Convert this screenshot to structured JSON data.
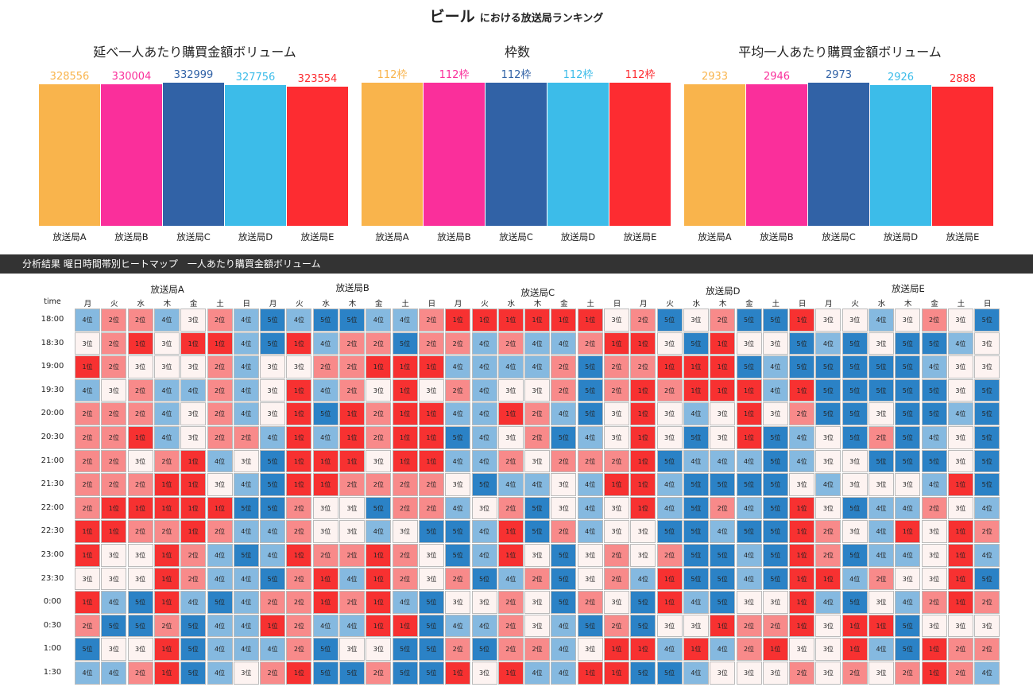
{
  "title": {
    "product": "ビール",
    "suffix": "における放送局ランキング"
  },
  "colors": {
    "stations": [
      "#f9b44c",
      "#fa2f9b",
      "#3162a6",
      "#3cbce9",
      "#fd2c31"
    ],
    "rank": [
      "#f73131",
      "#f88a8a",
      "#fdf3f1",
      "#85b9e0",
      "#2b82c6"
    ]
  },
  "chart_data": [
    {
      "type": "bar",
      "title": "延べ一人あたり購買金額ボリューム",
      "categories": [
        "放送局A",
        "放送局B",
        "放送局C",
        "放送局D",
        "放送局E"
      ],
      "values": [
        328556,
        330004,
        332999,
        327756,
        323554
      ],
      "labels": [
        "328556",
        "330004",
        "332999",
        "327756",
        "323554"
      ]
    },
    {
      "type": "bar",
      "title": "枠数",
      "categories": [
        "放送局A",
        "放送局B",
        "放送局C",
        "放送局D",
        "放送局E"
      ],
      "values": [
        112,
        112,
        112,
        112,
        112
      ],
      "labels": [
        "112枠",
        "112枠",
        "112枠",
        "112枠",
        "112枠"
      ]
    },
    {
      "type": "bar",
      "title": "平均一人あたり購買金額ボリューム",
      "categories": [
        "放送局A",
        "放送局B",
        "放送局C",
        "放送局D",
        "放送局E"
      ],
      "values": [
        2933,
        2946,
        2973,
        2926,
        2888
      ],
      "labels": [
        "2933",
        "2946",
        "2973",
        "2926",
        "2888"
      ]
    },
    {
      "type": "heatmap",
      "title": "分析結果 曜日時間帯別ヒートマップ　一人あたり購買金額ボリューム",
      "row_header": "time",
      "stations": [
        "放送局A",
        "放送局B",
        "放送局C",
        "放送局D",
        "放送局E"
      ],
      "days": [
        "月",
        "火",
        "水",
        "木",
        "金",
        "土",
        "日"
      ],
      "unit": "位",
      "times": [
        "18:00",
        "18:30",
        "19:00",
        "19:30",
        "20:00",
        "20:30",
        "21:00",
        "21:30",
        "22:00",
        "22:30",
        "23:00",
        "23:30",
        "0:00",
        "0:30",
        "1:00",
        "1:30"
      ],
      "values": [
        [
          4,
          2,
          2,
          4,
          3,
          2,
          4,
          5,
          4,
          5,
          5,
          4,
          4,
          2,
          1,
          1,
          1,
          1,
          1,
          1,
          3,
          2,
          5,
          3,
          2,
          5,
          5,
          1,
          3,
          3,
          4,
          3,
          2,
          3,
          5
        ],
        [
          3,
          2,
          1,
          3,
          1,
          1,
          4,
          5,
          1,
          4,
          2,
          2,
          5,
          2,
          2,
          4,
          2,
          4,
          4,
          2,
          1,
          1,
          3,
          5,
          1,
          3,
          3,
          5,
          4,
          5,
          3,
          5,
          5,
          4,
          3
        ],
        [
          1,
          2,
          3,
          3,
          3,
          2,
          4,
          3,
          3,
          2,
          2,
          1,
          1,
          1,
          4,
          4,
          4,
          4,
          2,
          5,
          2,
          2,
          1,
          1,
          1,
          5,
          4,
          5,
          5,
          5,
          5,
          5,
          4,
          3,
          3
        ],
        [
          4,
          3,
          2,
          4,
          4,
          2,
          4,
          3,
          1,
          4,
          2,
          3,
          1,
          3,
          2,
          4,
          3,
          3,
          2,
          5,
          2,
          1,
          2,
          1,
          1,
          1,
          4,
          1,
          5,
          5,
          5,
          5,
          5,
          3,
          5
        ],
        [
          2,
          2,
          2,
          4,
          3,
          2,
          4,
          3,
          1,
          5,
          1,
          2,
          1,
          1,
          4,
          4,
          1,
          2,
          4,
          5,
          3,
          1,
          3,
          4,
          3,
          1,
          3,
          2,
          5,
          5,
          3,
          5,
          5,
          4,
          5
        ],
        [
          2,
          2,
          1,
          4,
          3,
          2,
          2,
          4,
          1,
          4,
          1,
          2,
          1,
          1,
          5,
          4,
          3,
          2,
          5,
          4,
          3,
          1,
          3,
          5,
          3,
          1,
          5,
          4,
          3,
          5,
          2,
          5,
          4,
          3,
          5
        ],
        [
          2,
          2,
          3,
          2,
          1,
          4,
          3,
          5,
          1,
          1,
          1,
          3,
          1,
          1,
          4,
          4,
          2,
          3,
          2,
          2,
          2,
          1,
          5,
          4,
          4,
          4,
          5,
          4,
          3,
          3,
          5,
          5,
          5,
          3,
          5
        ],
        [
          2,
          2,
          2,
          1,
          1,
          3,
          4,
          5,
          1,
          1,
          2,
          2,
          2,
          2,
          3,
          5,
          4,
          4,
          3,
          4,
          1,
          1,
          4,
          5,
          5,
          5,
          5,
          3,
          4,
          3,
          3,
          3,
          4,
          1,
          5
        ],
        [
          2,
          1,
          1,
          1,
          1,
          1,
          5,
          5,
          2,
          3,
          3,
          5,
          2,
          2,
          4,
          3,
          2,
          5,
          3,
          4,
          3,
          1,
          4,
          5,
          2,
          4,
          5,
          1,
          3,
          5,
          4,
          4,
          2,
          3,
          4
        ],
        [
          1,
          1,
          2,
          2,
          1,
          2,
          4,
          4,
          2,
          3,
          3,
          4,
          3,
          5,
          5,
          4,
          1,
          5,
          2,
          4,
          3,
          3,
          5,
          5,
          4,
          5,
          5,
          1,
          2,
          3,
          4,
          1,
          3,
          1,
          2
        ],
        [
          1,
          3,
          3,
          1,
          2,
          4,
          5,
          4,
          1,
          2,
          2,
          1,
          2,
          3,
          5,
          4,
          1,
          3,
          5,
          3,
          2,
          3,
          2,
          5,
          5,
          4,
          5,
          1,
          2,
          5,
          4,
          4,
          3,
          1,
          4
        ],
        [
          3,
          3,
          3,
          1,
          2,
          4,
          4,
          5,
          2,
          1,
          4,
          1,
          2,
          3,
          2,
          5,
          4,
          2,
          5,
          3,
          2,
          4,
          1,
          5,
          5,
          4,
          5,
          1,
          1,
          4,
          2,
          3,
          3,
          1,
          5
        ],
        [
          1,
          4,
          5,
          1,
          4,
          5,
          4,
          2,
          2,
          1,
          2,
          1,
          4,
          5,
          3,
          3,
          2,
          3,
          5,
          2,
          3,
          5,
          1,
          4,
          5,
          3,
          3,
          1,
          4,
          5,
          3,
          4,
          2,
          1,
          2
        ],
        [
          2,
          5,
          5,
          2,
          5,
          4,
          4,
          1,
          2,
          4,
          4,
          1,
          1,
          5,
          4,
          4,
          2,
          3,
          4,
          5,
          2,
          5,
          3,
          3,
          1,
          2,
          2,
          1,
          3,
          1,
          1,
          5,
          3,
          3,
          3
        ],
        [
          5,
          3,
          3,
          1,
          5,
          4,
          4,
          4,
          2,
          5,
          3,
          3,
          5,
          5,
          2,
          5,
          2,
          2,
          4,
          3,
          1,
          1,
          4,
          1,
          4,
          2,
          1,
          3,
          3,
          1,
          4,
          5,
          1,
          2,
          2
        ],
        [
          4,
          4,
          2,
          1,
          5,
          4,
          3,
          2,
          1,
          5,
          5,
          2,
          5,
          5,
          1,
          3,
          1,
          4,
          4,
          1,
          1,
          5,
          5,
          4,
          3,
          3,
          3,
          2,
          3,
          2,
          3,
          2,
          1,
          2,
          4
        ]
      ]
    }
  ]
}
